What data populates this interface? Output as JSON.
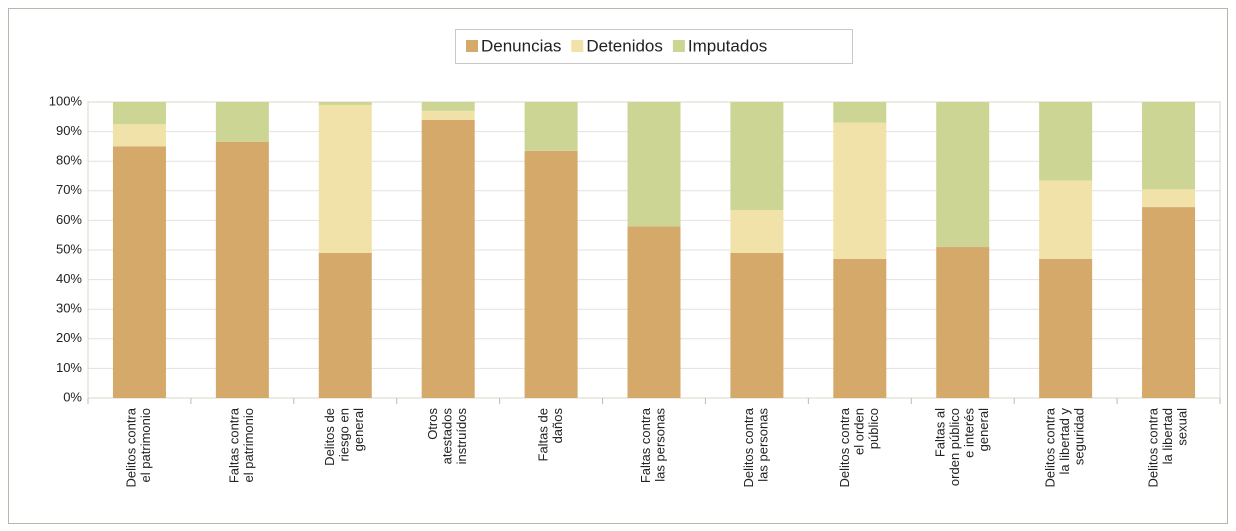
{
  "chart_data": {
    "type": "stacked_bar_percent",
    "categories": [
      [
        "Delitos contra",
        "el patrimonio"
      ],
      [
        "Faltas contra",
        "el patrimonio"
      ],
      [
        "Delitos de",
        "riesgo en",
        "general"
      ],
      [
        "Otros",
        "atestados",
        "instruídos"
      ],
      [
        "Faltas de",
        "daños"
      ],
      [
        "Faltas contra",
        "las personas"
      ],
      [
        "Delitos contra",
        "las personas"
      ],
      [
        "Delitos contra",
        "el orden",
        "público"
      ],
      [
        "Faltas al",
        "orden público",
        "e interés",
        "general"
      ],
      [
        "Delitos contra",
        "la libertad y",
        "seguridad"
      ],
      [
        "Delitos contra",
        "la libertad",
        "sexual"
      ]
    ],
    "series": [
      {
        "name": "Denuncias",
        "color": "#d4a96a",
        "values": [
          85,
          86.5,
          49,
          94,
          83.5,
          58,
          49,
          47,
          51,
          47,
          64.5
        ]
      },
      {
        "name": "Detenidos",
        "color": "#f0e2a8",
        "values": [
          7.5,
          0,
          50,
          3,
          0,
          0,
          14.5,
          46,
          0,
          26.5,
          6
        ]
      },
      {
        "name": "Imputados",
        "color": "#cdd595",
        "values": [
          7.5,
          13.5,
          1,
          3,
          16.5,
          42,
          36.5,
          7,
          49,
          26.5,
          29.5
        ]
      }
    ],
    "ylim": [
      0,
      100
    ],
    "yticks": [
      {
        "value": 0,
        "label": "0%"
      },
      {
        "value": 10,
        "label": "10%"
      },
      {
        "value": 20,
        "label": "20%"
      },
      {
        "value": 30,
        "label": "30%"
      },
      {
        "value": 40,
        "label": "40%"
      },
      {
        "value": 50,
        "label": "50%"
      },
      {
        "value": 60,
        "label": "60%"
      },
      {
        "value": 70,
        "label": "70%"
      },
      {
        "value": 80,
        "label": "80%"
      },
      {
        "value": 90,
        "label": "90%"
      },
      {
        "value": 100,
        "label": "100%"
      }
    ],
    "grid": true,
    "legend": "top"
  }
}
